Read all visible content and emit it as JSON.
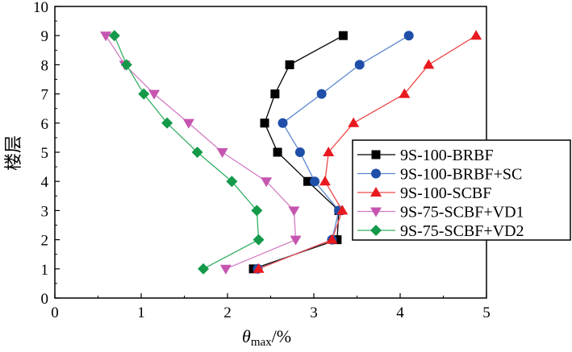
{
  "chart_data": {
    "type": "line",
    "title": "",
    "xlabel_main": "θ",
    "xlabel_sub": "max",
    "xlabel_unit": "/%",
    "ylabel": "楼层",
    "xlim": [
      0,
      5
    ],
    "ylim": [
      0,
      10
    ],
    "xticks": [
      "0",
      "1",
      "2",
      "3",
      "4",
      "5"
    ],
    "yticks": [
      "0",
      "1",
      "2",
      "3",
      "4",
      "5",
      "6",
      "7",
      "8",
      "9",
      "10"
    ],
    "y": [
      1,
      2,
      3,
      4,
      5,
      6,
      7,
      8,
      9
    ],
    "legend_position": "right",
    "series": [
      {
        "name": "9S-100-BRBF",
        "marker": "square",
        "color": "#000000",
        "line": "#000000",
        "values": [
          2.3,
          3.27,
          3.29,
          2.93,
          2.58,
          2.43,
          2.55,
          2.72,
          3.34
        ]
      },
      {
        "name": "9S-100-BRBF+SC",
        "marker": "circle",
        "color": "#1f4fa8",
        "line": "#5a86d0",
        "values": [
          2.35,
          3.21,
          3.29,
          3.01,
          2.84,
          2.64,
          3.09,
          3.53,
          4.1
        ]
      },
      {
        "name": "9S-100-SCBF",
        "marker": "triangle-up",
        "color": "#e8191f",
        "line": "#ee4a4a",
        "values": [
          2.36,
          3.21,
          3.33,
          3.13,
          3.17,
          3.46,
          4.05,
          4.33,
          4.88
        ]
      },
      {
        "name": "9S-75-SCBF+VD1",
        "marker": "triangle-down",
        "color": "#c555b0",
        "line": "#d37cc4",
        "values": [
          1.98,
          2.79,
          2.77,
          2.45,
          1.94,
          1.55,
          1.15,
          0.81,
          0.59
        ]
      },
      {
        "name": "9S-75-SCBF+VD2",
        "marker": "diamond",
        "color": "#14994a",
        "line": "#35b065",
        "values": [
          1.72,
          2.36,
          2.34,
          2.05,
          1.65,
          1.3,
          1.03,
          0.83,
          0.69
        ]
      }
    ]
  }
}
